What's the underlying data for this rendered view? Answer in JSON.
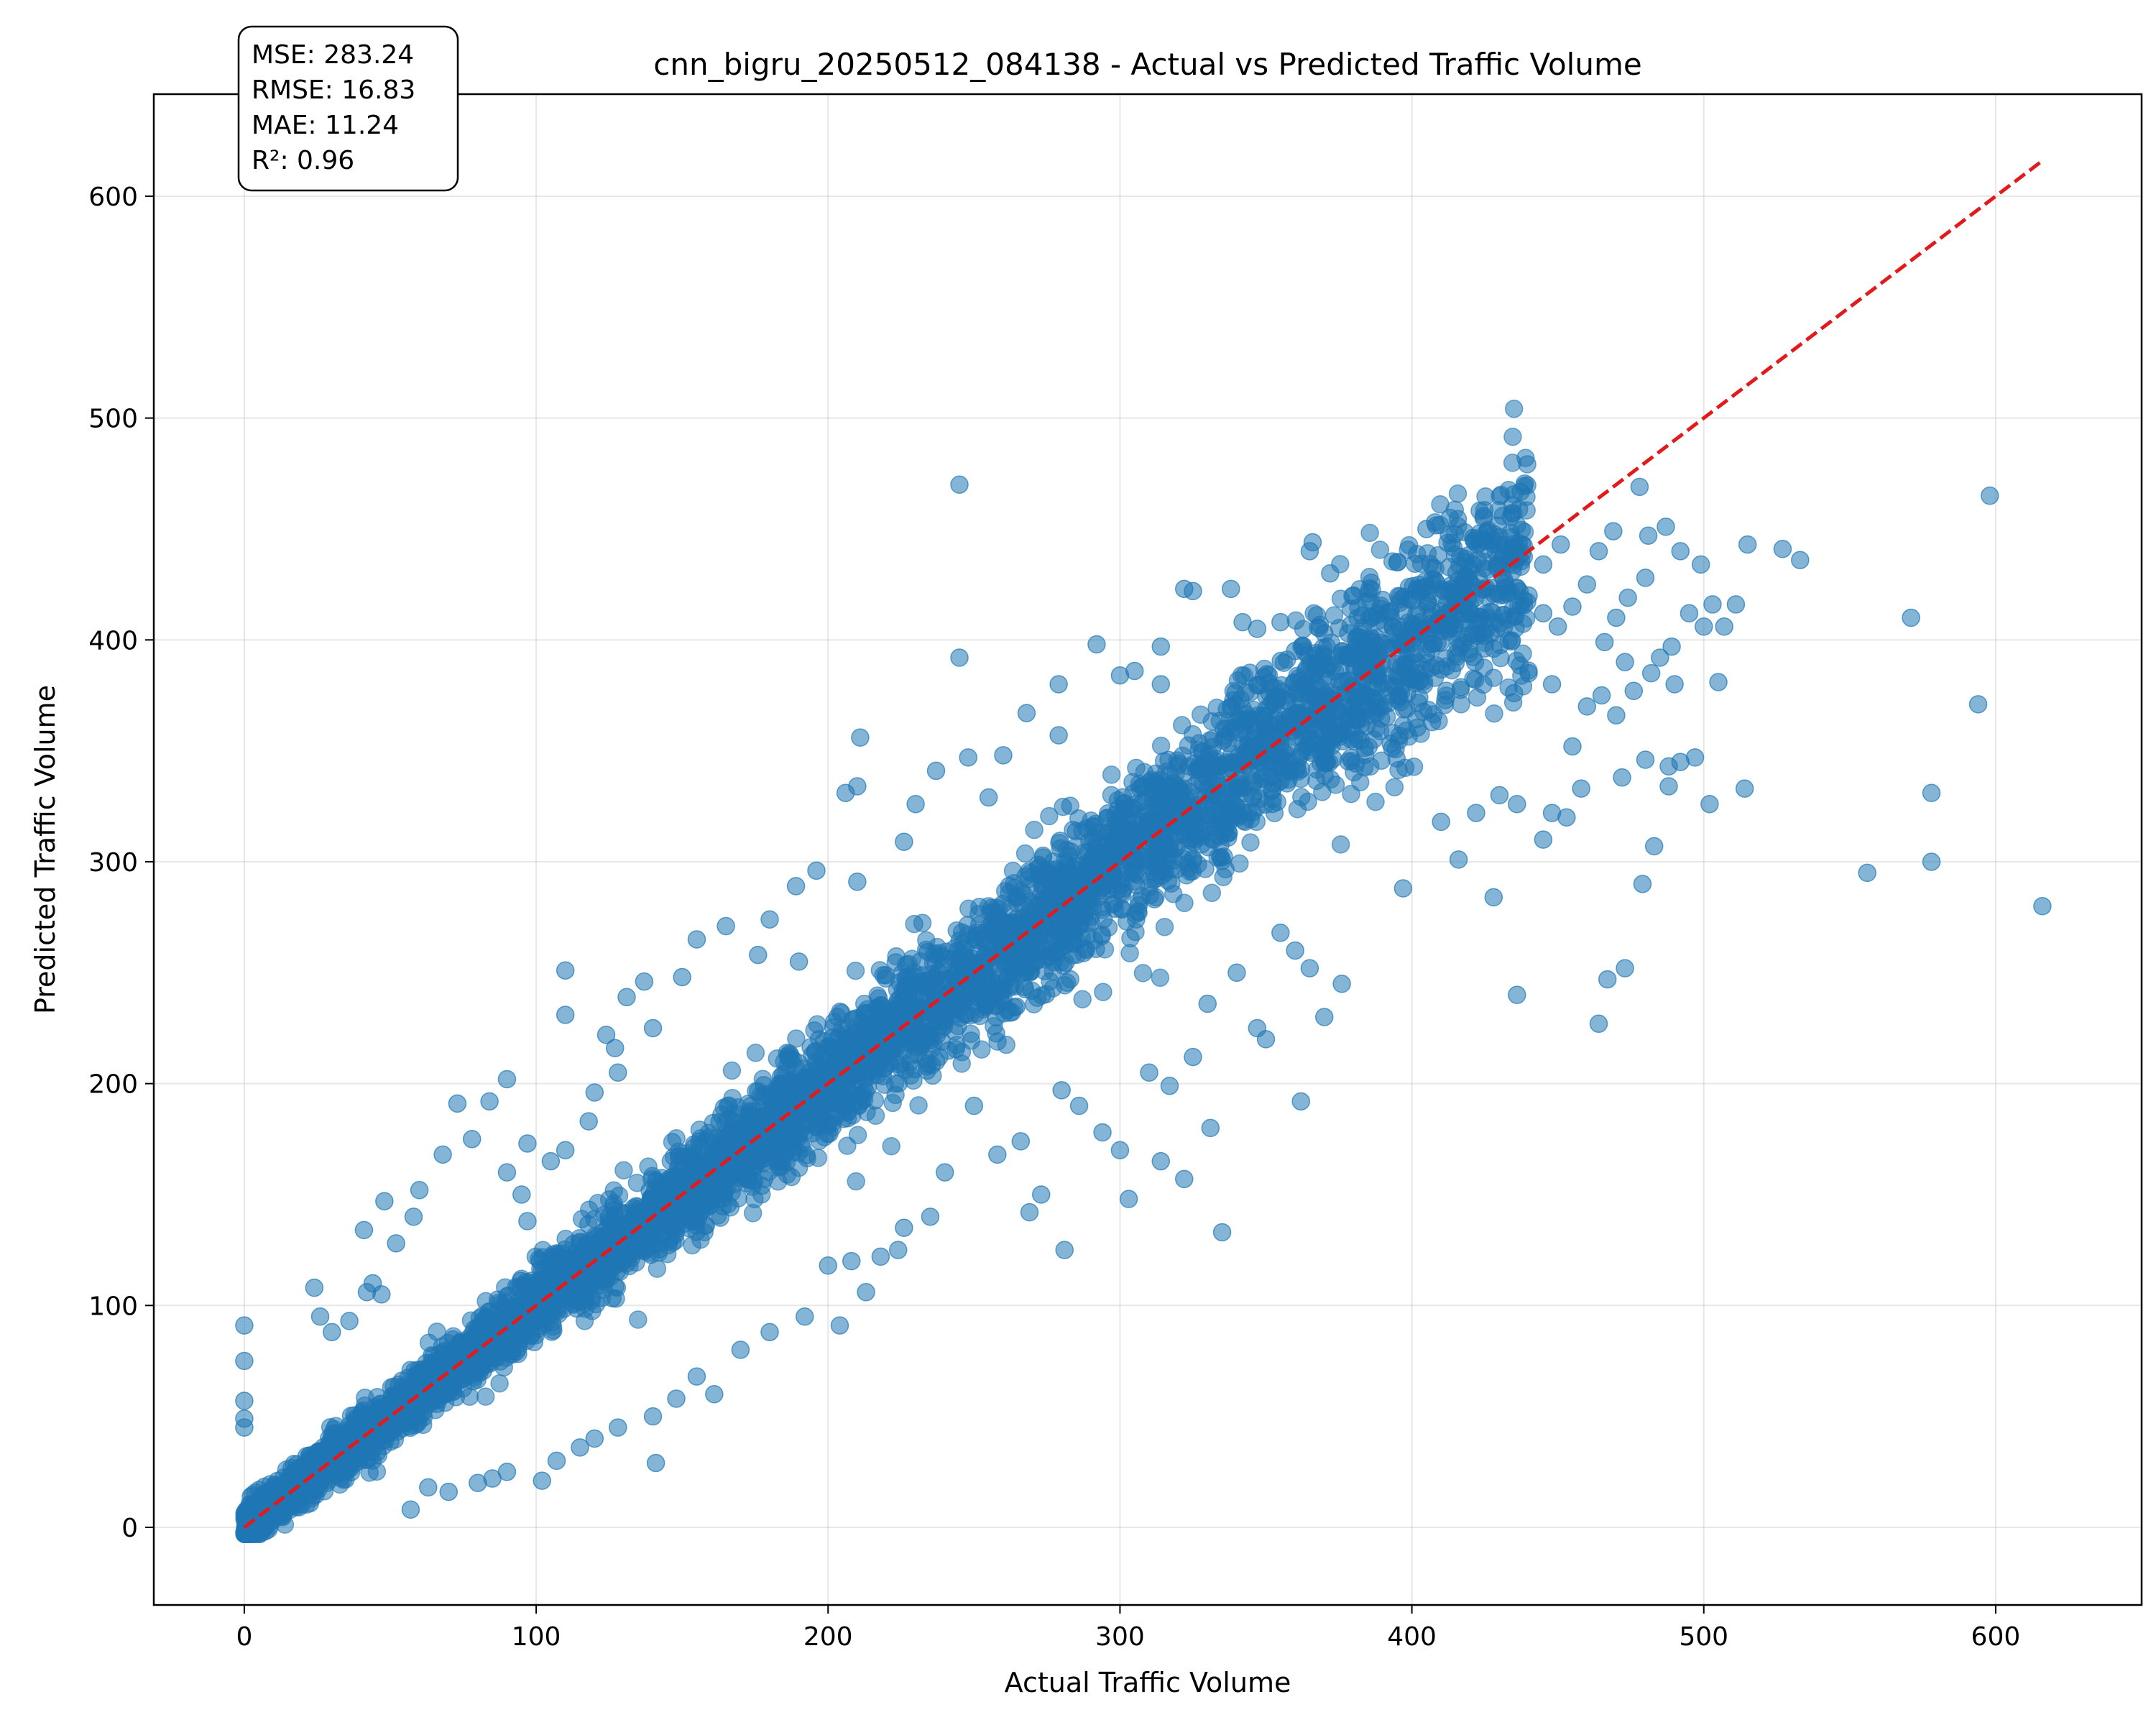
{
  "chart_data": {
    "type": "scatter",
    "title": "cnn_bigru_20250512_084138 - Actual vs Predicted Traffic Volume",
    "xlabel": "Actual Traffic Volume",
    "ylabel": "Predicted Traffic Volume",
    "xlim": [
      -31,
      650
    ],
    "ylim": [
      -35,
      646
    ],
    "xticks": [
      "0",
      "100",
      "200",
      "300",
      "400",
      "500",
      "600"
    ],
    "yticks": [
      "0",
      "100",
      "200",
      "300",
      "400",
      "500",
      "600"
    ],
    "xtick_values": [
      0,
      100,
      200,
      300,
      400,
      500,
      600
    ],
    "ytick_values": [
      0,
      100,
      200,
      300,
      400,
      500,
      600
    ],
    "grid": true,
    "point_color": "#1f77b4",
    "reference_line": {
      "label": "y = x",
      "color": "#e31a1c",
      "style": "dashed",
      "from": [
        0,
        0
      ],
      "to": [
        616,
        616
      ]
    },
    "stats": [
      "MSE: 283.24",
      "RMSE: 16.83",
      "MAE: 11.24",
      "R²: 0.96"
    ],
    "series": [
      {
        "outliers": [
          [
            245,
            470
          ],
          [
            598,
            465
          ],
          [
            515,
            443
          ],
          [
            527,
            441
          ],
          [
            533,
            436
          ],
          [
            571,
            410
          ],
          [
            594,
            371
          ],
          [
            578,
            331
          ],
          [
            514,
            333
          ],
          [
            556,
            295
          ],
          [
            578,
            300
          ],
          [
            616,
            280
          ],
          [
            502,
            326
          ],
          [
            497,
            347
          ],
          [
            488,
            343
          ],
          [
            483,
            307
          ],
          [
            479,
            290
          ],
          [
            473,
            252
          ],
          [
            467,
            247
          ],
          [
            464,
            227
          ],
          [
            436,
            240
          ],
          [
            445,
            310
          ],
          [
            428,
            284
          ],
          [
            397,
            288
          ],
          [
            376,
            245
          ],
          [
            362,
            192
          ],
          [
            350,
            220
          ],
          [
            347,
            225
          ],
          [
            335,
            133
          ],
          [
            331,
            180
          ],
          [
            322,
            157
          ],
          [
            314,
            165
          ],
          [
            303,
            148
          ],
          [
            281,
            125
          ],
          [
            273,
            150
          ],
          [
            269,
            142
          ],
          [
            250,
            190
          ],
          [
            245,
            392
          ],
          [
            248,
            347
          ],
          [
            211,
            356
          ],
          [
            210,
            334
          ],
          [
            206,
            331
          ],
          [
            161,
            60
          ],
          [
            141,
            29
          ],
          [
            102,
            21
          ],
          [
            213,
            106
          ],
          [
            204,
            91
          ],
          [
            110,
            251
          ],
          [
            110,
            231
          ],
          [
            131,
            239
          ],
          [
            137,
            246
          ],
          [
            0,
            91
          ],
          [
            0,
            75
          ],
          [
            0,
            57
          ],
          [
            0,
            49
          ],
          [
            0,
            45
          ],
          [
            24,
            108
          ],
          [
            26,
            95
          ],
          [
            42,
            106
          ],
          [
            47,
            105
          ],
          [
            41,
            134
          ],
          [
            48,
            147
          ],
          [
            73,
            191
          ],
          [
            84,
            192
          ],
          [
            90,
            202
          ],
          [
            97,
            173
          ],
          [
            97,
            138
          ],
          [
            63,
            18
          ],
          [
            57,
            8
          ],
          [
            85,
            22
          ],
          [
            305,
            386
          ],
          [
            322,
            423
          ],
          [
            338,
            423
          ],
          [
            347,
            405
          ],
          [
            365,
            440
          ],
          [
            366,
            444
          ],
          [
            372,
            430
          ],
          [
            383,
            411
          ],
          [
            395,
            435
          ],
          [
            405,
            450
          ],
          [
            413,
            455
          ],
          [
            421,
            446
          ],
          [
            431,
            433
          ],
          [
            445,
            434
          ],
          [
            451,
            443
          ],
          [
            464,
            440
          ],
          [
            469,
            449
          ],
          [
            478,
            469
          ],
          [
            481,
            447
          ],
          [
            487,
            451
          ],
          [
            492,
            440
          ],
          [
            499,
            434
          ],
          [
            503,
            416
          ],
          [
            507,
            406
          ],
          [
            511,
            416
          ],
          [
            505,
            381
          ],
          [
            490,
            380
          ],
          [
            292,
            398
          ],
          [
            300,
            384
          ],
          [
            314,
            397
          ],
          [
            314,
            380
          ],
          [
            325,
            422
          ],
          [
            342,
            408
          ],
          [
            355,
            408
          ],
          [
            360,
            395
          ],
          [
            370,
            403
          ],
          [
            380,
            420
          ],
          [
            385,
            421
          ],
          [
            390,
            418
          ],
          [
            440,
            420
          ],
          [
            445,
            412
          ],
          [
            450,
            406
          ],
          [
            455,
            415
          ],
          [
            460,
            425
          ],
          [
            466,
            399
          ],
          [
            470,
            410
          ],
          [
            474,
            419
          ],
          [
            480,
            428
          ],
          [
            485,
            392
          ],
          [
            489,
            397
          ],
          [
            495,
            412
          ],
          [
            500,
            406
          ],
          [
            279,
            380
          ],
          [
            268,
            367
          ],
          [
            279,
            357
          ],
          [
            260,
            348
          ],
          [
            255,
            329
          ],
          [
            230,
            326
          ],
          [
            237,
            341
          ],
          [
            226,
            309
          ],
          [
            210,
            291
          ],
          [
            196,
            296
          ],
          [
            189,
            289
          ],
          [
            180,
            274
          ],
          [
            176,
            258
          ],
          [
            165,
            271
          ],
          [
            155,
            265
          ],
          [
            150,
            248
          ],
          [
            190,
            255
          ],
          [
            124,
            222
          ],
          [
            127,
            216
          ],
          [
            140,
            225
          ],
          [
            105,
            165
          ],
          [
            110,
            170
          ],
          [
            118,
            183
          ],
          [
            120,
            196
          ],
          [
            128,
            205
          ],
          [
            95,
            150
          ],
          [
            90,
            160
          ],
          [
            78,
            175
          ],
          [
            68,
            168
          ],
          [
            60,
            152
          ],
          [
            58,
            140
          ],
          [
            52,
            128
          ],
          [
            44,
            110
          ],
          [
            36,
            93
          ],
          [
            30,
            88
          ],
          [
            370,
            230
          ],
          [
            365,
            252
          ],
          [
            360,
            260
          ],
          [
            355,
            268
          ],
          [
            340,
            250
          ],
          [
            330,
            236
          ],
          [
            325,
            212
          ],
          [
            317,
            199
          ],
          [
            310,
            205
          ],
          [
            300,
            170
          ],
          [
            294,
            178
          ],
          [
            286,
            190
          ],
          [
            280,
            197
          ],
          [
            266,
            174
          ],
          [
            258,
            168
          ],
          [
            240,
            160
          ],
          [
            235,
            140
          ],
          [
            226,
            135
          ],
          [
            224,
            125
          ],
          [
            218,
            122
          ],
          [
            208,
            120
          ],
          [
            200,
            118
          ],
          [
            192,
            95
          ],
          [
            180,
            88
          ],
          [
            170,
            80
          ],
          [
            155,
            68
          ],
          [
            148,
            58
          ],
          [
            140,
            50
          ],
          [
            128,
            45
          ],
          [
            120,
            40
          ],
          [
            115,
            36
          ],
          [
            107,
            30
          ],
          [
            90,
            25
          ],
          [
            80,
            20
          ],
          [
            70,
            16
          ],
          [
            410,
            318
          ],
          [
            416,
            301
          ],
          [
            422,
            322
          ],
          [
            430,
            330
          ],
          [
            436,
            326
          ],
          [
            448,
            322
          ],
          [
            453,
            320
          ],
          [
            458,
            333
          ],
          [
            472,
            338
          ],
          [
            480,
            346
          ],
          [
            488,
            334
          ],
          [
            492,
            345
          ],
          [
            455,
            352
          ],
          [
            460,
            370
          ],
          [
            465,
            375
          ],
          [
            470,
            366
          ],
          [
            476,
            377
          ],
          [
            482,
            385
          ],
          [
            473,
            390
          ],
          [
            448,
            380
          ],
          [
            440,
            385
          ],
          [
            435,
            376
          ]
        ]
      }
    ]
  }
}
